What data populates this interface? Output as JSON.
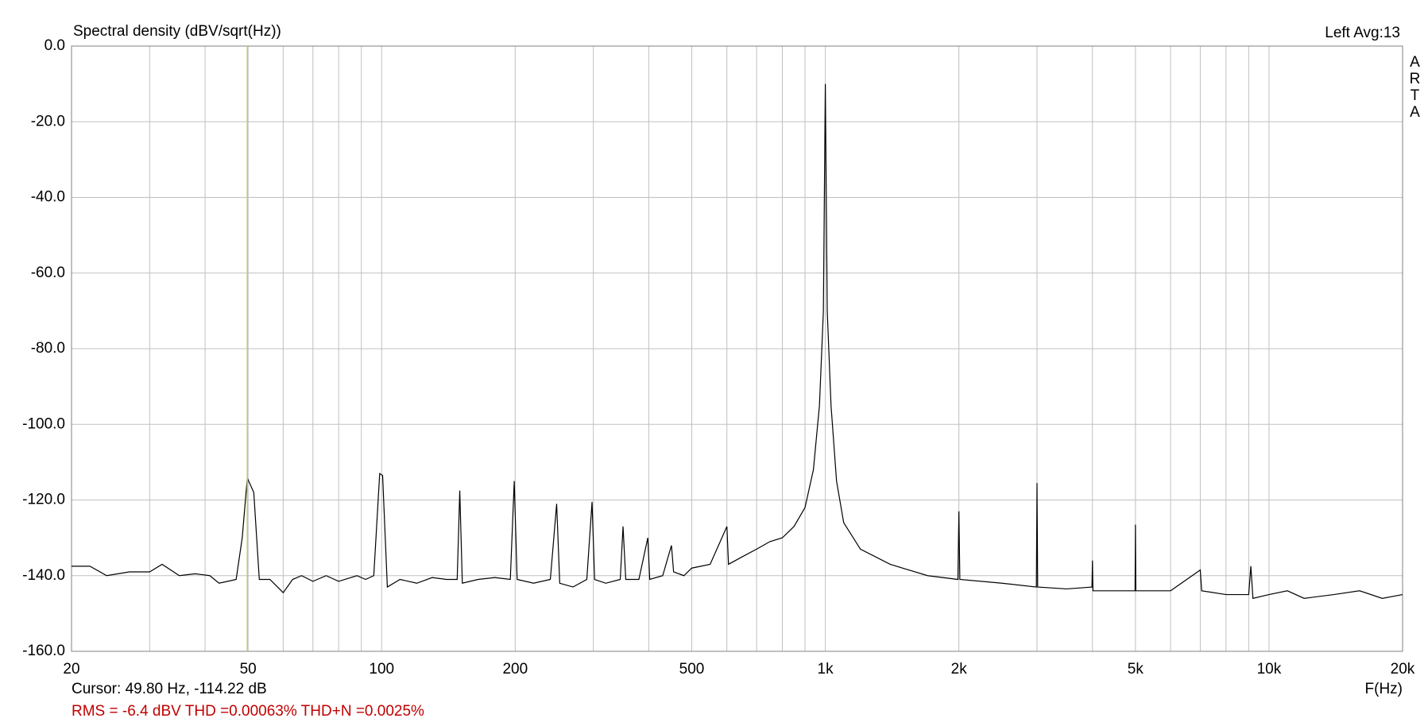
{
  "chart_data": {
    "type": "line",
    "title": "Spectral density (dBV/sqrt(Hz))",
    "status": "Left  Avg:13",
    "brand": "ARTA",
    "xlabel": "F(Hz)",
    "cursor_text": "Cursor: 49.80 Hz, -114.22 dB",
    "measurements": "RMS =   -6.4 dBV  THD =0.00063%  THD+N =0.0025%",
    "log_x": true,
    "grid": true,
    "color": "#000000",
    "cursor_x": 49.8,
    "cursor_color": "#c8c864",
    "xlim": [
      20,
      20000
    ],
    "ylim": [
      -160,
      0
    ],
    "xticks": [
      20,
      50,
      100,
      200,
      500,
      {
        "value": 1000,
        "label": "1k"
      },
      {
        "value": 2000,
        "label": "2k"
      },
      {
        "value": 5000,
        "label": "5k"
      },
      {
        "value": 10000,
        "label": "10k"
      },
      {
        "value": 20000,
        "label": "20k"
      }
    ],
    "xminorticks": [
      30,
      40,
      60,
      70,
      80,
      90,
      300,
      400,
      600,
      700,
      800,
      900,
      3000,
      4000,
      6000,
      7000,
      8000,
      9000
    ],
    "yticks": [
      {
        "value": 0,
        "label": "0.0"
      },
      {
        "value": -20,
        "label": "-20.0"
      },
      {
        "value": -40,
        "label": "-40.0"
      },
      {
        "value": -60,
        "label": "-60.0"
      },
      {
        "value": -80,
        "label": "-80.0"
      },
      {
        "value": -100,
        "label": "-100.0"
      },
      {
        "value": -120,
        "label": "-120.0"
      },
      {
        "value": -140,
        "label": "-140.0"
      },
      {
        "value": -160,
        "label": "-160.0"
      }
    ],
    "x": [
      20,
      22,
      24,
      27,
      30,
      32,
      35,
      38,
      41,
      43,
      45,
      47,
      48.5,
      49.8,
      51.5,
      53,
      56,
      60,
      63,
      66,
      70,
      75,
      80,
      88,
      92,
      96,
      99,
      100.5,
      103,
      110,
      120,
      130,
      140,
      148,
      150,
      152,
      165,
      180,
      195,
      199,
      202,
      220,
      240,
      248,
      252,
      270,
      290,
      298,
      302,
      320,
      345,
      350,
      355,
      380,
      398,
      402,
      430,
      450,
      455,
      480,
      500,
      550,
      600,
      605,
      650,
      700,
      750,
      800,
      850,
      900,
      940,
      970,
      990,
      1000,
      1010,
      1030,
      1060,
      1100,
      1200,
      1400,
      1700,
      1990,
      2000,
      2010,
      2500,
      2990,
      3000,
      3010,
      3500,
      3990,
      4000,
      4010,
      4990,
      5000,
      5010,
      6000,
      7000,
      7050,
      8000,
      9000,
      9100,
      9200,
      10000,
      11000,
      12000,
      14000,
      16000,
      18000,
      20000
    ],
    "values": [
      -137.5,
      -137.5,
      -140,
      -139,
      -139,
      -137,
      -140,
      -139.5,
      -140,
      -142,
      -141.5,
      -141,
      -130,
      -114.2,
      -118,
      -141,
      -141,
      -144.5,
      -141,
      -140,
      -141.5,
      -140,
      -141.5,
      -140,
      -141,
      -140,
      -113,
      -113.5,
      -143,
      -141,
      -142,
      -140.5,
      -141,
      -141,
      -117.5,
      -142,
      -141,
      -140.5,
      -141,
      -115,
      -141,
      -142,
      -141,
      -121,
      -142,
      -143,
      -141,
      -120.5,
      -141,
      -142,
      -141,
      -127,
      -141,
      -141,
      -130,
      -141,
      -140,
      -132,
      -139,
      -140,
      -138,
      -137,
      -127,
      -137,
      -135,
      -133,
      -131,
      -130,
      -127,
      -122,
      -112,
      -95,
      -70,
      -10,
      -70,
      -95,
      -115,
      -126,
      -133,
      -137,
      -140,
      -141,
      -123,
      -141,
      -142,
      -143,
      -115.5,
      -143,
      -143.5,
      -143,
      -136,
      -144,
      -144,
      -126.5,
      -144,
      -144,
      -138.5,
      -144,
      -145,
      -145,
      -137.5,
      -146,
      -145,
      -144,
      -146,
      -145,
      -144,
      -146,
      -145
    ]
  }
}
